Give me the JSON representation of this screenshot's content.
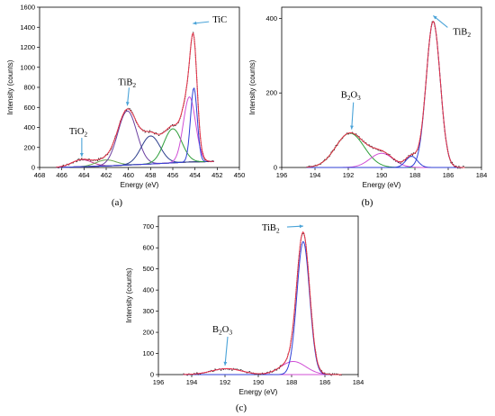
{
  "figure": {
    "panel_labels": [
      "(a)",
      "(b)",
      "(c)"
    ]
  },
  "chart_data": [
    {
      "type": "line",
      "panel": "(a)",
      "xlabel": "Energy (eV)",
      "ylabel": "Intensity (counts)",
      "xlim": [
        468,
        450
      ],
      "ylim": [
        0,
        1600
      ],
      "xticks": [
        468,
        466,
        464,
        462,
        460,
        458,
        456,
        454,
        452,
        450
      ],
      "yticks": [
        0,
        200,
        400,
        600,
        800,
        1000,
        1200,
        1400,
        1600
      ],
      "annotations": [
        {
          "text": "TiO",
          "sub": "2",
          "x": 464.2,
          "y": 80
        },
        {
          "text": "TiB",
          "sub": "2",
          "x": 460.1,
          "y": 590
        },
        {
          "text": "TiC",
          "x": 454.2,
          "y": 1410
        }
      ],
      "background": {
        "x": [
          466.5,
          462,
          458,
          454.5,
          452
        ],
        "y": [
          0,
          15,
          35,
          55,
          60
        ]
      },
      "components": [
        {
          "color": "#c23b8e",
          "center": 464.2,
          "height": 70,
          "width": 0.9
        },
        {
          "color": "#6aa84f",
          "center": 462.0,
          "height": 60,
          "width": 0.9
        },
        {
          "color": "#6b3fa0",
          "center": 460.1,
          "height": 540,
          "width": 0.85
        },
        {
          "color": "#2c3e8c",
          "center": 458.0,
          "height": 280,
          "width": 0.85
        },
        {
          "color": "#2e9e3a",
          "center": 456.0,
          "height": 340,
          "width": 0.8
        },
        {
          "color": "#d04fd6",
          "center": 454.5,
          "height": 650,
          "width": 0.55
        },
        {
          "color": "#2f3fd6",
          "center": 454.1,
          "height": 740,
          "width": 0.3
        }
      ],
      "envelope_color": "#e8344a",
      "raw_color": "#2a2a2a",
      "x_range": [
        466.5,
        452.3
      ]
    },
    {
      "type": "line",
      "panel": "(b)",
      "xlabel": "Energy (eV)",
      "ylabel": "Intensity (counts)",
      "xlim": [
        196,
        184
      ],
      "ylim": [
        0,
        430
      ],
      "xticks": [
        196,
        194,
        192,
        190,
        188,
        186,
        184
      ],
      "yticks": [
        0,
        200,
        400
      ],
      "annotations": [
        {
          "text": "B",
          "sub": "2",
          "text2": "O",
          "sub2": "3",
          "x": 191.8,
          "y": 95
        },
        {
          "text": "TiB",
          "sub": "2",
          "x": 186.9,
          "y": 400
        }
      ],
      "background": {
        "x": [
          194.5,
          185
        ],
        "y": [
          0,
          0
        ]
      },
      "components": [
        {
          "color": "#2e9e3a",
          "center": 191.9,
          "height": 92,
          "width": 0.85
        },
        {
          "color": "#d04fd6",
          "center": 190.0,
          "height": 38,
          "width": 0.7
        },
        {
          "color": "#2f3fd6",
          "center": 188.2,
          "height": 30,
          "width": 0.35
        },
        {
          "color": "#2f3fd6",
          "center": 186.9,
          "height": 392,
          "width": 0.42
        }
      ],
      "envelope_color": "#e8344a",
      "raw_color": "#2a2a2a",
      "x_range": [
        194.5,
        185.0
      ]
    },
    {
      "type": "line",
      "panel": "(c)",
      "xlabel": "Energy (eV)",
      "ylabel": "Intensity (counts)",
      "xlim": [
        196,
        184
      ],
      "ylim": [
        0,
        750
      ],
      "xticks": [
        196,
        194,
        192,
        190,
        188,
        186,
        184
      ],
      "yticks": [
        0,
        100,
        200,
        300,
        400,
        500,
        600,
        700
      ],
      "annotations": [
        {
          "text": "B",
          "sub": "2",
          "text2": "O",
          "sub2": "3",
          "x": 192.0,
          "y": 30
        },
        {
          "text": "TiB",
          "sub": "2",
          "x": 187.3,
          "y": 690
        }
      ],
      "background": {
        "x": [
          194.5,
          185
        ],
        "y": [
          0,
          0
        ]
      },
      "components": [
        {
          "color": "#d04fd6",
          "center": 191.9,
          "height": 28,
          "width": 0.9
        },
        {
          "color": "#d04fd6",
          "center": 187.9,
          "height": 62,
          "width": 0.75
        },
        {
          "color": "#2f3fd6",
          "center": 187.3,
          "height": 630,
          "width": 0.38
        }
      ],
      "envelope_color": "#e8344a",
      "raw_color": "#2a2a2a",
      "x_range": [
        194.5,
        185.0
      ]
    }
  ]
}
